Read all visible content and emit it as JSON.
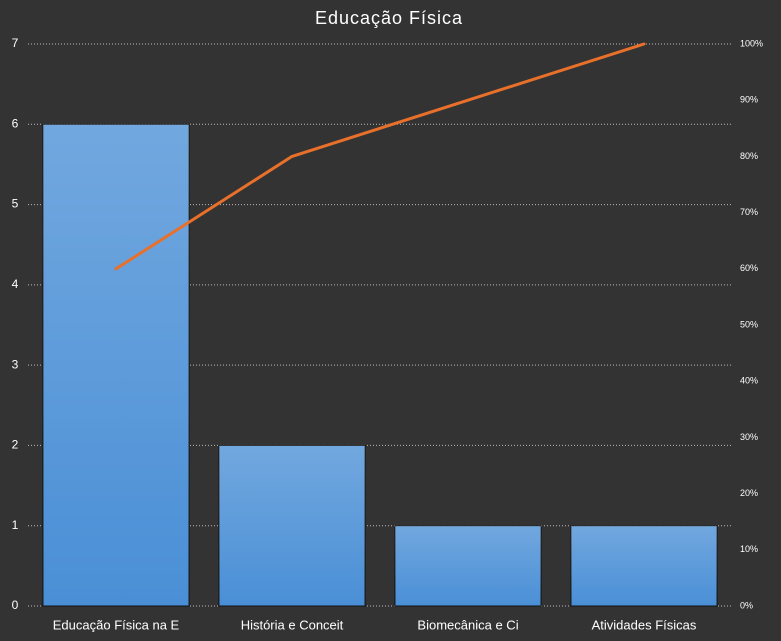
{
  "chart_data": {
    "type": "pareto",
    "title": "Educação Física",
    "categories": [
      "Educação Física na E",
      "História e Conceit",
      "Biomecânica e Ci",
      "Atividades Físicas"
    ],
    "series": [
      {
        "color": "#4a8fd6",
        "values": [
          6,
          2,
          1,
          1
        ]
      },
      {
        "color": "#e8702a",
        "values": [
          60,
          80,
          90,
          100
        ],
        "axis": "y2"
      }
    ],
    "ylim": [
      0,
      7
    ],
    "yticks": [
      0,
      1,
      2,
      3,
      4,
      5,
      6,
      7
    ],
    "y2lim": [
      0,
      100
    ],
    "y2ticks": [
      {
        "value": 0,
        "label": "0%"
      },
      {
        "value": 10,
        "label": "10%"
      },
      {
        "value": 20,
        "label": "20%"
      },
      {
        "value": 30,
        "label": "30%"
      },
      {
        "value": 40,
        "label": "40%"
      },
      {
        "value": 50,
        "label": "50%"
      },
      {
        "value": 60,
        "label": "60%"
      },
      {
        "value": 70,
        "label": "70%"
      },
      {
        "value": 80,
        "label": "80%"
      },
      {
        "value": 90,
        "label": "90%"
      },
      {
        "value": 100,
        "label": "100%"
      }
    ],
    "grid": true
  }
}
